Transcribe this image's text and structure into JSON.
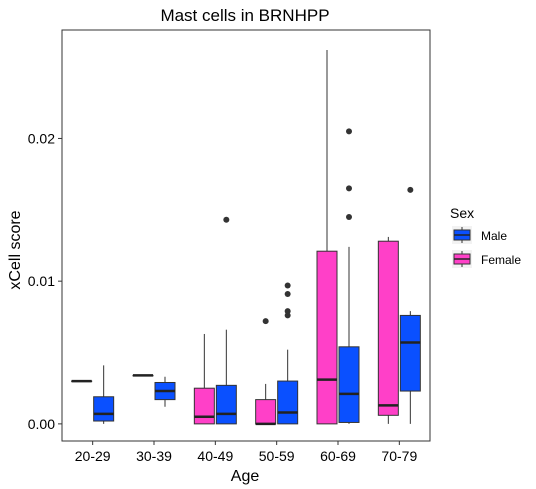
{
  "chart_data": {
    "type": "box",
    "title": "Mast cells in BRNHPP",
    "xlabel": "Age",
    "ylabel": "xCell score",
    "categories": [
      "20-29",
      "30-39",
      "40-49",
      "50-59",
      "60-69",
      "70-79"
    ],
    "ylim": [
      -0.0012,
      0.0276
    ],
    "yticks": [
      0,
      0.01,
      0.02
    ],
    "ytick_labels": [
      "0.00",
      "0.01",
      "0.02"
    ],
    "grid": false,
    "legend": {
      "title": "Sex",
      "position": "right",
      "entries": [
        {
          "name": "Male",
          "color": "#0A50FF"
        },
        {
          "name": "Female",
          "color": "#FF40C8"
        }
      ]
    },
    "series": [
      {
        "name": "Female",
        "color": "#FF40C8",
        "boxes": [
          {
            "category": "20-29",
            "min": 0.003,
            "q1": 0.003,
            "median": 0.003,
            "q3": 0.003,
            "max": 0.003,
            "outliers": []
          },
          {
            "category": "30-39",
            "min": 0.0034,
            "q1": 0.0034,
            "median": 0.0034,
            "q3": 0.0034,
            "max": 0.0034,
            "outliers": []
          },
          {
            "category": "40-49",
            "min": 0.0,
            "q1": 0.0,
            "median": 0.0005,
            "q3": 0.0025,
            "max": 0.0063,
            "outliers": []
          },
          {
            "category": "50-59",
            "min": 0.0,
            "q1": 0.0,
            "median": 0.0,
            "q3": 0.0017,
            "max": 0.0028,
            "outliers": [
              0.0072
            ]
          },
          {
            "category": "60-69",
            "min": 0.0,
            "q1": 0.0,
            "median": 0.0031,
            "q3": 0.0121,
            "max": 0.0262,
            "outliers": []
          },
          {
            "category": "70-79",
            "min": 0.0,
            "q1": 0.0006,
            "median": 0.0013,
            "q3": 0.0128,
            "max": 0.0131,
            "outliers": []
          }
        ]
      },
      {
        "name": "Male",
        "color": "#0A50FF",
        "boxes": [
          {
            "category": "20-29",
            "min": 0.0,
            "q1": 0.0002,
            "median": 0.0007,
            "q3": 0.0019,
            "max": 0.0041,
            "outliers": []
          },
          {
            "category": "30-39",
            "min": 0.0012,
            "q1": 0.0017,
            "median": 0.0023,
            "q3": 0.0029,
            "max": 0.0033,
            "outliers": []
          },
          {
            "category": "40-49",
            "min": 0.0,
            "q1": 0.0,
            "median": 0.0007,
            "q3": 0.0027,
            "max": 0.0066,
            "outliers": [
              0.0143
            ]
          },
          {
            "category": "50-59",
            "min": 0.0,
            "q1": 0.0,
            "median": 0.0008,
            "q3": 0.003,
            "max": 0.0052,
            "outliers": [
              0.0076,
              0.0079,
              0.0091,
              0.0097
            ]
          },
          {
            "category": "60-69",
            "min": 0.0,
            "q1": 0.0001,
            "median": 0.0021,
            "q3": 0.0054,
            "max": 0.0124,
            "outliers": [
              0.0145,
              0.0165,
              0.0205
            ]
          },
          {
            "category": "70-79",
            "min": 0.0,
            "q1": 0.0023,
            "median": 0.0057,
            "q3": 0.0076,
            "max": 0.0079,
            "outliers": [
              0.0164
            ]
          }
        ]
      }
    ]
  }
}
